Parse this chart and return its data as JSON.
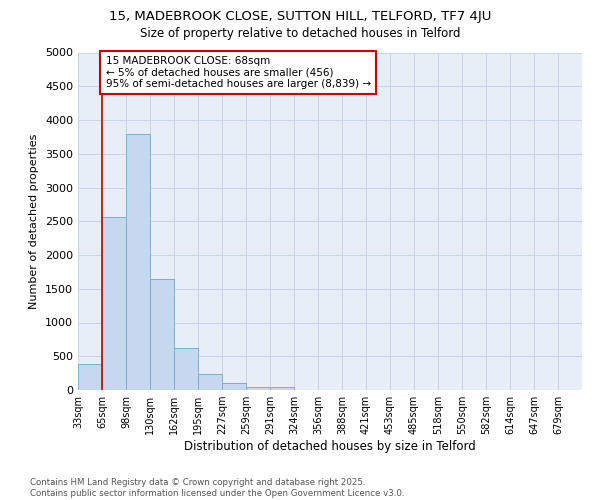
{
  "title1": "15, MADEBROOK CLOSE, SUTTON HILL, TELFORD, TF7 4JU",
  "title2": "Size of property relative to detached houses in Telford",
  "xlabel": "Distribution of detached houses by size in Telford",
  "ylabel": "Number of detached properties",
  "footer1": "Contains HM Land Registry data © Crown copyright and database right 2025.",
  "footer2": "Contains public sector information licensed under the Open Government Licence v3.0.",
  "annotation_line1": "15 MADEBROOK CLOSE: 68sqm",
  "annotation_line2": "← 5% of detached houses are smaller (456)",
  "annotation_line3": "95% of semi-detached houses are larger (8,839) →",
  "bar_values": [
    390,
    2570,
    3800,
    1650,
    620,
    235,
    105,
    45,
    45,
    0,
    0,
    0,
    0,
    0,
    0,
    0,
    0,
    0,
    0,
    0,
    0
  ],
  "categories": [
    "33sqm",
    "65sqm",
    "98sqm",
    "130sqm",
    "162sqm",
    "195sqm",
    "227sqm",
    "259sqm",
    "291sqm",
    "324sqm",
    "356sqm",
    "388sqm",
    "421sqm",
    "453sqm",
    "485sqm",
    "518sqm",
    "550sqm",
    "582sqm",
    "614sqm",
    "647sqm",
    "679sqm"
  ],
  "bar_color": "#c5d8ef",
  "bar_edge_color": "#7bafd4",
  "vline_color": "#cc0000",
  "ylim": [
    0,
    5000
  ],
  "yticks": [
    0,
    500,
    1000,
    1500,
    2000,
    2500,
    3000,
    3500,
    4000,
    4500,
    5000
  ],
  "annotation_box_color": "#ffffff",
  "annotation_box_edge": "#cc0000",
  "grid_color": "#c8d4e8",
  "bg_color": "#e8eef8"
}
